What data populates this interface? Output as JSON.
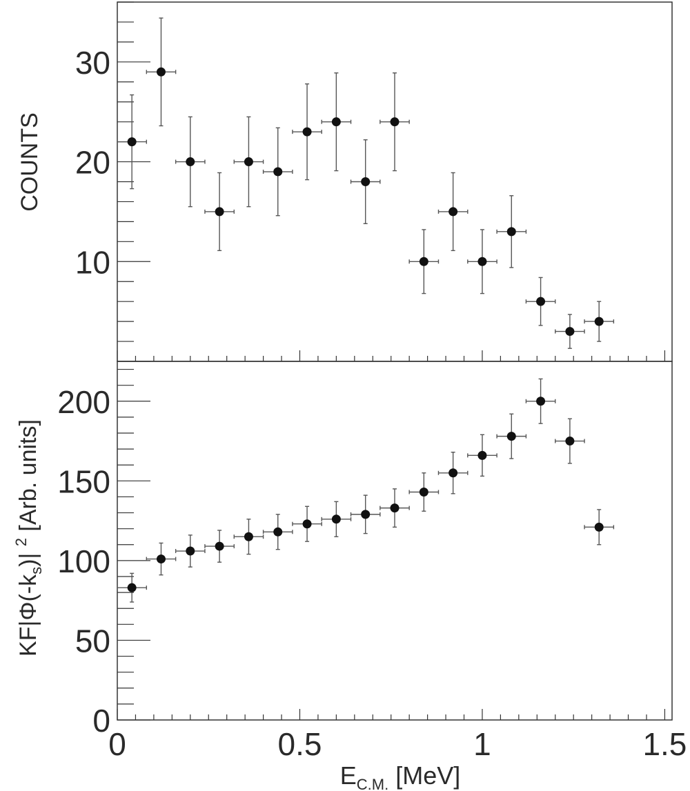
{
  "chart_data": [
    {
      "type": "scatter",
      "panel": "top",
      "xlabel": "",
      "ylabel": "COUNTS",
      "xlim": [
        0,
        1.52
      ],
      "ylim": [
        0,
        36
      ],
      "yticks_labeled": [
        10,
        20,
        30
      ],
      "ytick_labels": [
        "10",
        "20",
        "30"
      ],
      "x": [
        0.04,
        0.12,
        0.2,
        0.28,
        0.36,
        0.44,
        0.52,
        0.6,
        0.68,
        0.76,
        0.84,
        0.92,
        1.0,
        1.08,
        1.16,
        1.24,
        1.32
      ],
      "y": [
        22,
        29,
        20,
        15,
        20,
        19,
        23,
        24,
        18,
        24,
        10,
        15,
        10,
        13,
        6,
        3,
        4
      ],
      "yerr": [
        4.7,
        5.4,
        4.5,
        3.9,
        4.5,
        4.4,
        4.8,
        4.9,
        4.2,
        4.9,
        3.2,
        3.9,
        3.2,
        3.6,
        2.4,
        1.7,
        2.0
      ],
      "xerr": 0.04,
      "grid": false
    },
    {
      "type": "scatter",
      "panel": "bottom",
      "xlabel": "E_C.M. [MeV]",
      "ylabel": "KF|Φ(-k_s)|^2 [Arb. units]",
      "xlim": [
        0,
        1.52
      ],
      "ylim": [
        0,
        225
      ],
      "yticks_labeled": [
        0,
        50,
        100,
        150,
        200
      ],
      "ytick_labels": [
        "0",
        "50",
        "100",
        "150",
        "200"
      ],
      "xticks_labeled": [
        0,
        0.5,
        1,
        1.5
      ],
      "xtick_labels": [
        "0",
        "0.5",
        "1",
        "1.5"
      ],
      "x": [
        0.04,
        0.12,
        0.2,
        0.28,
        0.36,
        0.44,
        0.52,
        0.6,
        0.68,
        0.76,
        0.84,
        0.92,
        1.0,
        1.08,
        1.16,
        1.24,
        1.32
      ],
      "y": [
        83,
        101,
        106,
        109,
        115,
        118,
        123,
        126,
        129,
        133,
        143,
        155,
        166,
        178,
        200,
        175,
        121
      ],
      "yerr": [
        9,
        10,
        10,
        10,
        11,
        11,
        11,
        11,
        12,
        12,
        12,
        13,
        13,
        14,
        14,
        14,
        11
      ],
      "xerr": 0.04,
      "grid": false
    }
  ],
  "labels": {
    "top_ylabel": "COUNTS",
    "bottom_ylabel_main": "KF|Φ(-k",
    "bottom_ylabel_sub": "s",
    "bottom_ylabel_mid": ")| ",
    "bottom_ylabel_sup": "2",
    "bottom_ylabel_tail": " [Arb. units]",
    "xlabel_main": "E",
    "xlabel_sub": "C.M.",
    "xlabel_tail": " [MeV]"
  },
  "colors": {
    "marker": "#111111",
    "errorbar": "#555555",
    "axis": "#333333",
    "text": "#2a2a2a"
  }
}
